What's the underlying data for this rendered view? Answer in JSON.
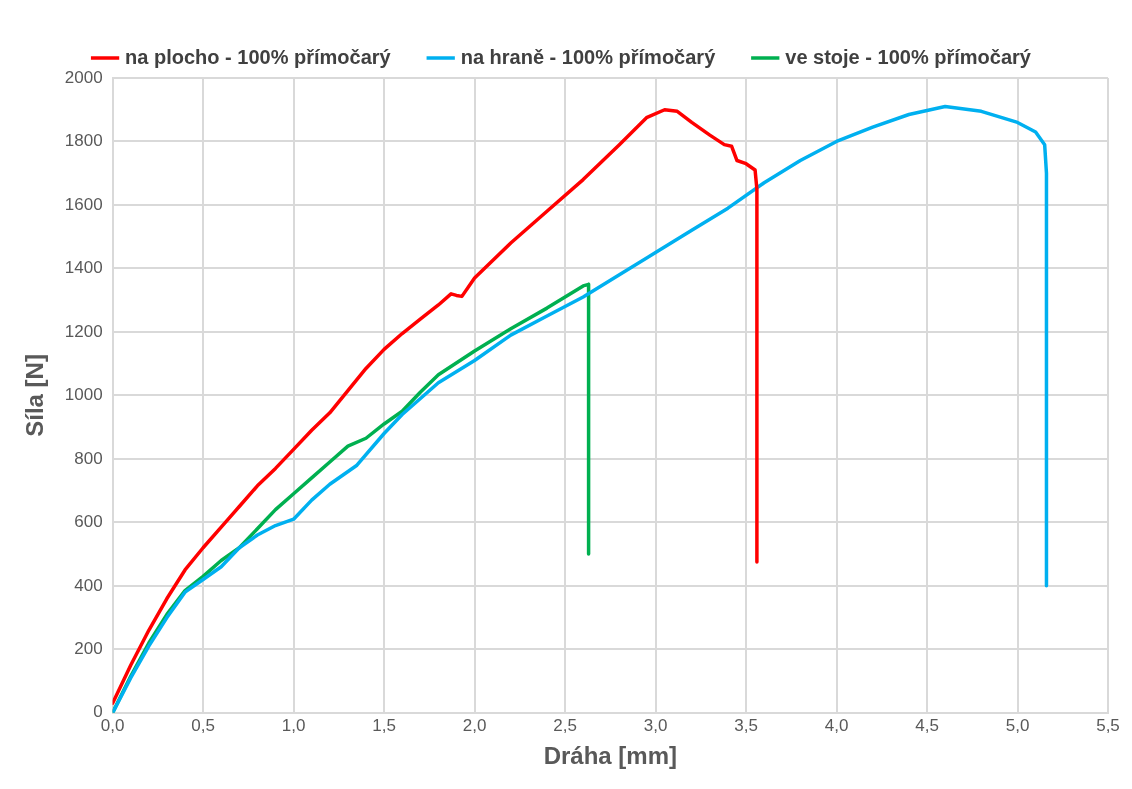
{
  "chart_data": {
    "type": "line",
    "xlabel": "Dráha [mm]",
    "ylabel": "Síla [N]",
    "legend": "top",
    "grid": true,
    "marker": "none",
    "line_style": "solid",
    "xlim": [
      0,
      5.5
    ],
    "xticks": [
      {
        "value": 0,
        "label": "0,0"
      },
      {
        "value": 0.5,
        "label": "0,5"
      },
      {
        "value": 1,
        "label": "1,0"
      },
      {
        "value": 1.5,
        "label": "1,5"
      },
      {
        "value": 2,
        "label": "2,0"
      },
      {
        "value": 2.5,
        "label": "2,5"
      },
      {
        "value": 3,
        "label": "3,0"
      },
      {
        "value": 3.5,
        "label": "3,5"
      },
      {
        "value": 4,
        "label": "4,0"
      },
      {
        "value": 4.5,
        "label": "4,5"
      },
      {
        "value": 5,
        "label": "5,0"
      },
      {
        "value": 5.5,
        "label": "5,5"
      }
    ],
    "ylim": [
      0,
      2000
    ],
    "yticks": [
      0,
      200,
      400,
      600,
      800,
      1000,
      1200,
      1400,
      1600,
      1800,
      2000
    ],
    "series": [
      {
        "name": "na plocho - 100% přímočarý",
        "color": "#ff0000",
        "x": [
          0,
          0.1,
          0.2,
          0.3,
          0.4,
          0.5,
          0.6,
          0.7,
          0.8,
          0.9,
          1.0,
          1.1,
          1.2,
          1.3,
          1.4,
          1.5,
          1.6,
          1.7,
          1.8,
          1.87,
          1.9,
          1.93,
          2.0,
          2.2,
          2.4,
          2.6,
          2.8,
          2.95,
          3.05,
          3.12,
          3.2,
          3.3,
          3.38,
          3.42,
          3.45,
          3.5,
          3.55,
          3.56,
          3.56
        ],
        "values": [
          30,
          150,
          260,
          360,
          450,
          520,
          585,
          650,
          715,
          770,
          830,
          890,
          945,
          1015,
          1085,
          1145,
          1195,
          1240,
          1285,
          1320,
          1315,
          1312,
          1370,
          1480,
          1580,
          1680,
          1790,
          1875,
          1900,
          1895,
          1860,
          1820,
          1790,
          1785,
          1740,
          1730,
          1710,
          1650,
          475
        ]
      },
      {
        "name": "na hraně - 100% přímočarý",
        "color": "#00b0f0",
        "x": [
          0,
          0.1,
          0.2,
          0.3,
          0.4,
          0.5,
          0.6,
          0.7,
          0.8,
          0.9,
          1.0,
          1.1,
          1.2,
          1.35,
          1.5,
          1.6,
          1.8,
          2.0,
          2.2,
          2.4,
          2.6,
          2.8,
          3.0,
          3.2,
          3.4,
          3.6,
          3.8,
          4.0,
          4.2,
          4.4,
          4.6,
          4.8,
          5.0,
          5.1,
          5.15,
          5.16,
          5.16
        ],
        "values": [
          0,
          110,
          210,
          300,
          380,
          420,
          460,
          520,
          560,
          590,
          610,
          670,
          720,
          780,
          880,
          940,
          1040,
          1110,
          1190,
          1250,
          1310,
          1380,
          1450,
          1520,
          1590,
          1670,
          1740,
          1800,
          1845,
          1885,
          1910,
          1895,
          1860,
          1830,
          1790,
          1700,
          400
        ]
      },
      {
        "name": "ve stoje - 100% přímočarý",
        "color": "#00b050",
        "x": [
          0,
          0.1,
          0.2,
          0.3,
          0.4,
          0.5,
          0.6,
          0.7,
          0.8,
          0.9,
          1.0,
          1.1,
          1.2,
          1.3,
          1.4,
          1.5,
          1.6,
          1.7,
          1.8,
          2.0,
          2.2,
          2.4,
          2.5,
          2.6,
          2.63,
          2.63
        ],
        "values": [
          0,
          115,
          220,
          310,
          385,
          430,
          480,
          520,
          580,
          640,
          690,
          740,
          790,
          840,
          865,
          910,
          950,
          1010,
          1065,
          1140,
          1210,
          1275,
          1310,
          1345,
          1350,
          500
        ]
      }
    ]
  }
}
